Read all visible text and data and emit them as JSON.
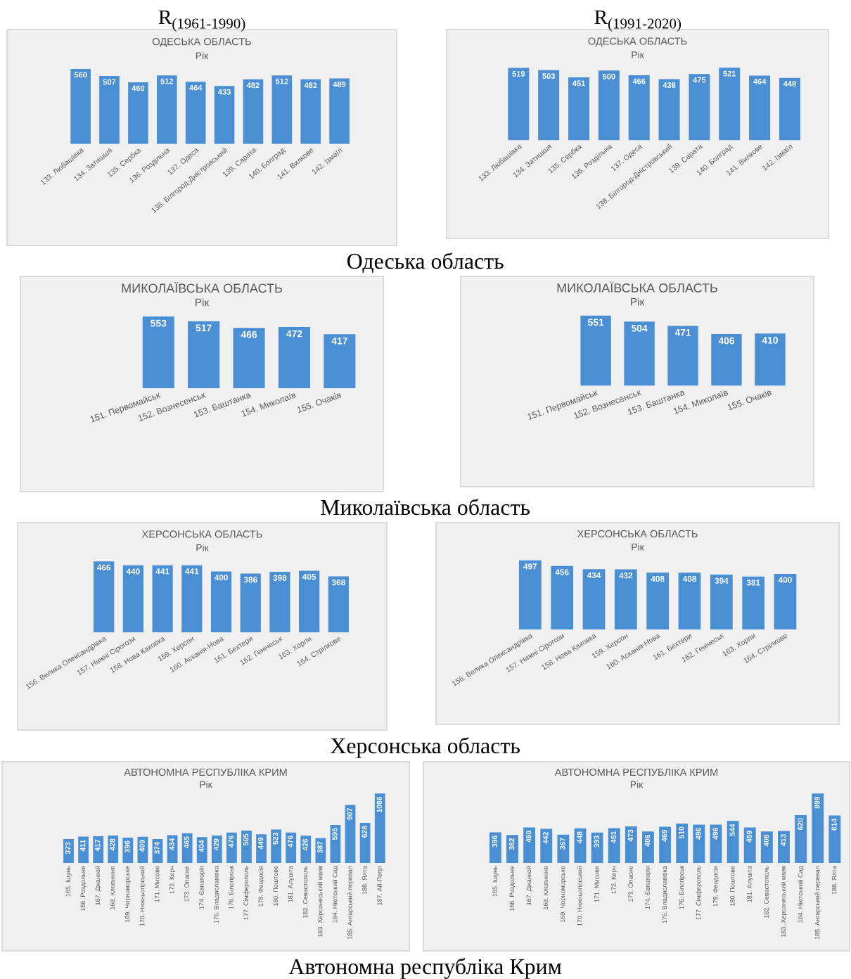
{
  "chart_data": [
    {
      "type": "bar",
      "title": "ОДЕСЬКА ОБЛАСТЬ",
      "subtitle": "Рік",
      "categories": [
        "133. Любашівка",
        "134. Затишшя",
        "135. Сербка",
        "136. Роздільна",
        "137. Одеса",
        "138. Білгород-Дністровський",
        "139. Сарата",
        "140. Болград",
        "141. Вилкове",
        "142. Ізмаїл"
      ],
      "values": [
        560,
        507,
        460,
        512,
        464,
        433,
        482,
        512,
        482,
        489
      ],
      "color": "#4a8fd4",
      "data_labels": true,
      "tick_labels": "x",
      "annotations": [
        "R$_{(1961-1990)}$",
        "Одеська область"
      ]
    },
    {
      "type": "bar",
      "title": "ОДЕСЬКА ОБЛАСТЬ",
      "subtitle": "Рік",
      "categories": [
        "133. Любашівка",
        "134. Затишшя",
        "135. Сербка",
        "136. Роздільна",
        "137. Одеса",
        "138. Білгород-Дністровський",
        "139. Сарата",
        "140. Болград",
        "141. Вилкове",
        "142. Ізмаїл"
      ],
      "values": [
        519,
        503,
        451,
        500,
        466,
        438,
        475,
        521,
        464,
        448
      ],
      "color": "#4a8fd4",
      "data_labels": true,
      "tick_labels": "x",
      "annotations": [
        "R$_{(1991-2020)}$"
      ]
    },
    {
      "type": "bar",
      "title": "МИКОЛАЇВСЬКА ОБЛАСТЬ",
      "subtitle": "Рік",
      "categories": [
        "151. Первомайськ",
        "152. Вознесенськ",
        "153. Баштанка",
        "154. Миколаїв",
        "155. Очаків"
      ],
      "values": [
        553,
        517,
        466,
        472,
        417
      ],
      "color": "#4a8fd4",
      "data_labels": true,
      "tick_labels": "x",
      "annotations": [
        "Миколаївська область"
      ]
    },
    {
      "type": "bar",
      "title": "МИКОЛАЇВСЬКА ОБЛАСТЬ",
      "subtitle": "Рік",
      "categories": [
        "151. Первомайськ",
        "152. Вознесенськ",
        "153. Баштанка",
        "154. Миколаїв",
        "155. Очаків"
      ],
      "values": [
        551,
        504,
        471,
        406,
        410
      ],
      "color": "#4a8fd4",
      "data_labels": true,
      "tick_labels": "x"
    },
    {
      "type": "bar",
      "title": "ХЕРСОНСЬКА ОБЛАСТЬ",
      "subtitle": "Рік",
      "categories": [
        "156. Велика Олександрівка",
        "157. Нижні Сірогози",
        "158. Нова Каховка",
        "159. Херсон",
        "160. Асканія-Нова",
        "161. Бехтери",
        "162. Генічеськ",
        "163. Хорли",
        "164. Стрілкове"
      ],
      "values": [
        466,
        440,
        441,
        441,
        400,
        386,
        398,
        405,
        368
      ],
      "color": "#4a8fd4",
      "data_labels": true,
      "tick_labels": "x",
      "annotations": [
        "Херсонська область"
      ]
    },
    {
      "type": "bar",
      "title": "ХЕРСОНСЬКА ОБЛАСТЬ",
      "subtitle": "Рік",
      "categories": [
        "156. Велика Олександрівка",
        "157. Нижні Сірогози",
        "158. Нова Каховка",
        "159. Херсон",
        "160. Асканія-Нова",
        "161. Бехтери",
        "162. Генічеськ",
        "163. Хорли",
        "164. Стрілкове"
      ],
      "values": [
        497,
        456,
        434,
        432,
        408,
        408,
        394,
        381,
        400
      ],
      "color": "#4a8fd4",
      "data_labels": true,
      "tick_labels": "x"
    },
    {
      "type": "bar",
      "title": "АВТОНОМНА РЕСПУБЛІКА КРИМ",
      "subtitle": "Рік",
      "categories": [
        "165. Ішунь",
        "166. Роздольне",
        "167. Джанкой",
        "168. Клепиніне",
        "169. Чорноморське",
        "170. Нижньогірський",
        "171. Мисове",
        "172. Керч",
        "173. Опасне",
        "174. Євпаторія",
        "175. Владиславівка",
        "176. Білогірськ",
        "177. Сімферополь",
        "178. Феодосія",
        "180. Поштове",
        "181. Алушта",
        "182. Севастополь",
        "183. Херсонеський маяк",
        "184. Нікітський Сад",
        "185. Ангарський перевал",
        "186. Ялта",
        "187. Ай-Петрі"
      ],
      "values": [
        373,
        411,
        417,
        428,
        396,
        409,
        374,
        434,
        465,
        404,
        429,
        476,
        505,
        449,
        523,
        476,
        426,
        387,
        595,
        907,
        628,
        1086
      ],
      "color": "#4a8fd4",
      "data_labels": true,
      "tick_labels": "x",
      "annotations": [
        "Автономна республіка Крим"
      ]
    },
    {
      "type": "bar",
      "title": "АВТОНОМНА РЕСПУБЛІКА КРИМ",
      "subtitle": "Рік",
      "categories": [
        "165. Ішунь",
        "166. Роздольне",
        "167. Джанкой",
        "168. Клепиніне",
        "169. Чорноморське",
        "170. Нижньогірський",
        "171. Мисове",
        "172. Керч",
        "173. Опасне",
        "174. Євпаторія",
        "175. Владиславівка",
        "176. Білогірськ",
        "177. Сімферополь",
        "178. Феодосія",
        "180. Поштове",
        "181. Алушта",
        "182. Севастополь",
        "183. Херсонеський маяк",
        "184. Нікітський Сад",
        "185. Ангарський перевал",
        "186. Ялта"
      ],
      "values": [
        396,
        362,
        460,
        442,
        367,
        448,
        393,
        451,
        473,
        406,
        469,
        510,
        496,
        496,
        544,
        459,
        408,
        413,
        620,
        899,
        614
      ],
      "color": "#4a8fd4",
      "data_labels": true,
      "tick_labels": "x"
    }
  ]
}
